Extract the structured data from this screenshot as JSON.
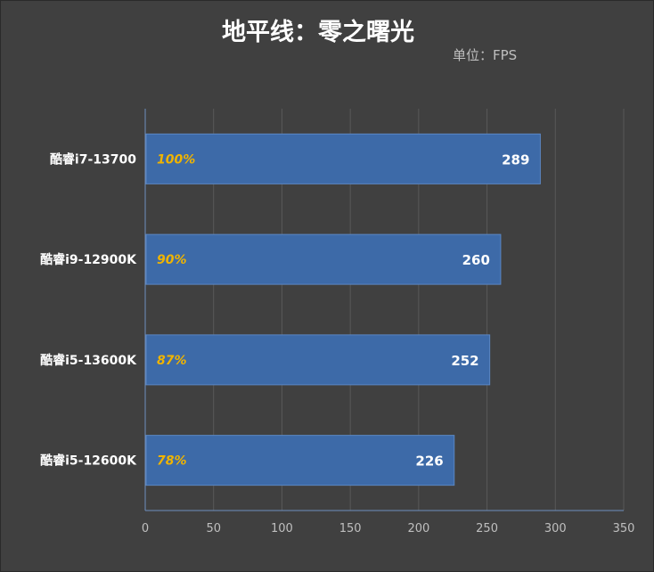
{
  "chart_data": {
    "type": "bar",
    "orientation": "horizontal",
    "title": "地平线：零之曙光",
    "subtitle": "单位：FPS",
    "categories": [
      "酷睿i7-13700",
      "酷睿i9-12900K",
      "酷睿i5-13600K",
      "酷睿i5-12600K"
    ],
    "values": [
      289,
      260,
      252,
      226
    ],
    "percent_labels": [
      "100%",
      "90%",
      "87%",
      "78%"
    ],
    "xlim": [
      0,
      350
    ],
    "xticks": [
      0,
      50,
      100,
      150,
      200,
      250,
      300,
      350
    ],
    "grid": true,
    "colors": {
      "bar": "#3d6aa8",
      "bar_border": "#5b86c2",
      "percent_text": "#f0b400",
      "value_text": "#ffffff",
      "background": "#404040",
      "grid": "#595959",
      "axis": "#6e8fbf",
      "tick_text": "#bfbfbf",
      "category_text": "#ffffff"
    }
  }
}
